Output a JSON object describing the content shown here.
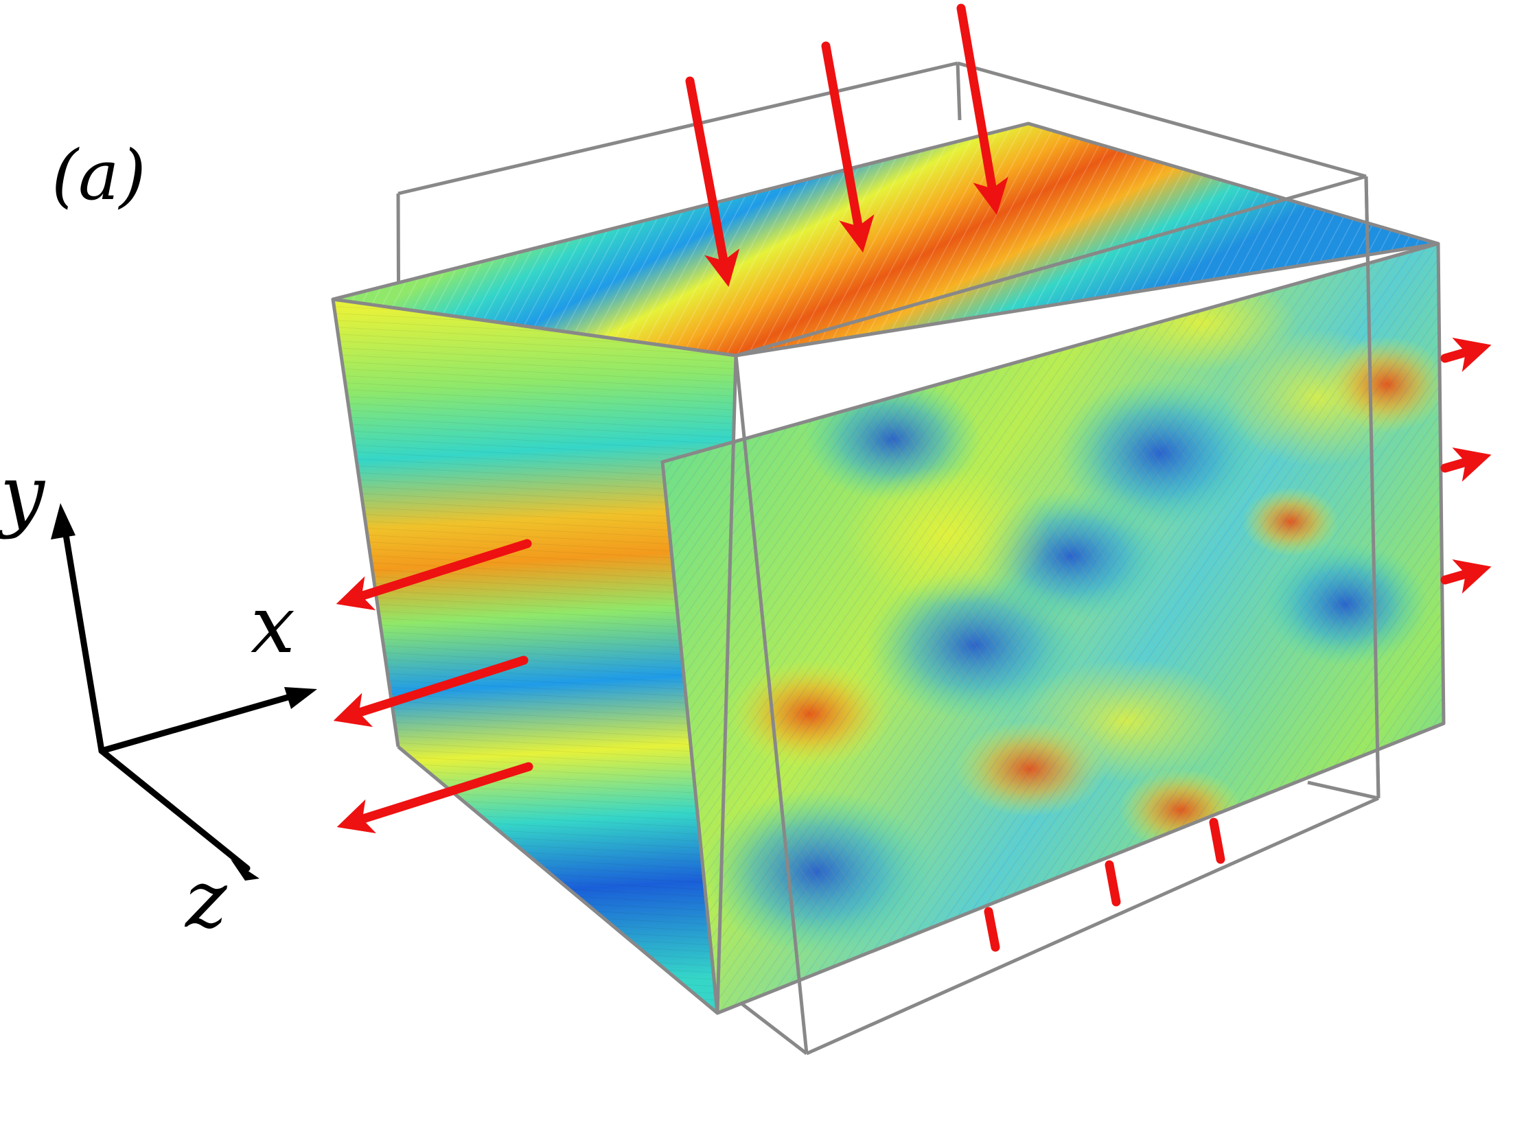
{
  "panel_label": "(a)",
  "axes": {
    "x_label": "x",
    "y_label": "y",
    "z_label": "z"
  },
  "colors": {
    "arrow": "#ee1111",
    "frame": "#888888",
    "axis": "#000000",
    "colormap": [
      "#1a4fd6",
      "#1f9be8",
      "#35d6c8",
      "#8fe86a",
      "#e6f23a",
      "#f7a91f",
      "#ea4a12"
    ]
  }
}
